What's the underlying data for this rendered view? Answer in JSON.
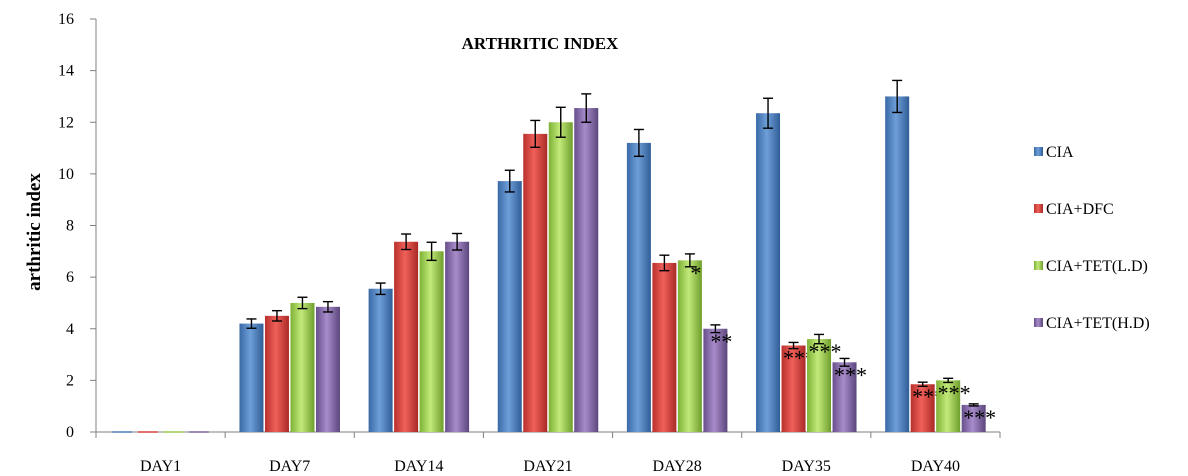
{
  "chart_data": {
    "type": "bar",
    "title": "ARTHRITIC INDEX",
    "ylabel": "arthritic index",
    "xlabel": "",
    "ylim": [
      0,
      16
    ],
    "yticks": [
      0,
      2,
      4,
      6,
      8,
      10,
      12,
      14,
      16
    ],
    "grid": false,
    "legend_position": "right",
    "categories": [
      "DAY1",
      "DAY7",
      "DAY14",
      "DAY21",
      "DAY28",
      "DAY35",
      "DAY40"
    ],
    "series": [
      {
        "name": "CIA",
        "color": "#4a7ebb",
        "values": [
          0,
          4.2,
          5.55,
          9.72,
          11.2,
          12.35,
          13.0
        ],
        "errors": [
          0,
          0.18,
          0.22,
          0.42,
          0.52,
          0.58,
          0.62
        ],
        "significance": [
          "",
          "",
          "",
          "",
          "",
          "",
          ""
        ]
      },
      {
        "name": "CIA+DFC",
        "color": "#d9403b",
        "values": [
          0,
          4.5,
          7.37,
          11.55,
          6.55,
          3.35,
          1.85
        ],
        "errors": [
          0,
          0.2,
          0.3,
          0.52,
          0.3,
          0.12,
          0.08
        ],
        "significance": [
          "",
          "",
          "",
          "",
          "",
          "***",
          "***"
        ]
      },
      {
        "name": "CIA+TET(L.D)",
        "color": "#9bcc4d",
        "values": [
          0,
          5.0,
          7.0,
          12.0,
          6.65,
          3.6,
          2.0
        ],
        "errors": [
          0,
          0.22,
          0.35,
          0.58,
          0.25,
          0.18,
          0.08
        ],
        "significance": [
          "",
          "",
          "",
          "",
          "*",
          "***",
          "***"
        ]
      },
      {
        "name": "CIA+TET(H.D)",
        "color": "#8064a2",
        "values": [
          0,
          4.85,
          7.37,
          12.55,
          4.0,
          2.7,
          1.05
        ],
        "errors": [
          0,
          0.2,
          0.32,
          0.55,
          0.15,
          0.15,
          0.04
        ],
        "significance": [
          "",
          "",
          "",
          "",
          "**",
          "***",
          "***"
        ]
      }
    ]
  }
}
